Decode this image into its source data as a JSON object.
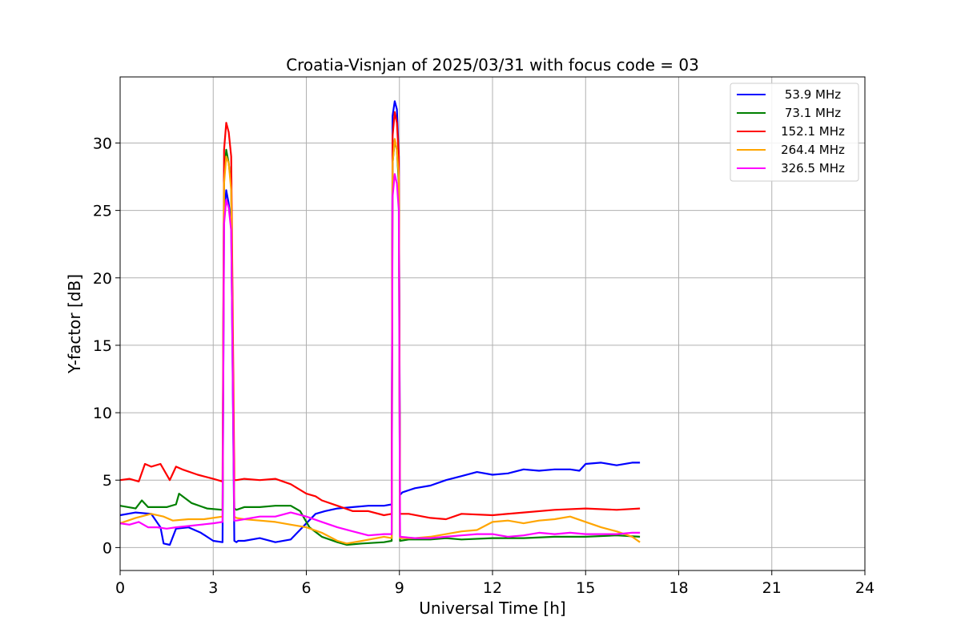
{
  "chart_data": {
    "type": "line",
    "title": "Croatia-Visnjan of 2025/03/31 with focus code = 03",
    "xlabel": "Universal Time [h]",
    "ylabel": "Y-factor [dB]",
    "xlim": [
      0,
      24
    ],
    "ylim": [
      -1.7,
      34.9
    ],
    "x_ticks": [
      0,
      3,
      6,
      9,
      12,
      15,
      18,
      21,
      24
    ],
    "y_ticks": [
      0,
      5,
      10,
      15,
      20,
      25,
      30
    ],
    "grid": true,
    "legend_position": "top-right",
    "series": [
      {
        "name": "53.9 MHz",
        "color": "#0000ff",
        "x": [
          0,
          0.5,
          1.0,
          1.3,
          1.4,
          1.6,
          1.8,
          2.2,
          2.6,
          3.0,
          3.3,
          3.35,
          3.42,
          3.5,
          3.58,
          3.68,
          3.75,
          3.8,
          4.0,
          4.5,
          5.0,
          5.5,
          6.0,
          6.3,
          6.6,
          7.0,
          7.5,
          8.0,
          8.5,
          8.75,
          8.78,
          8.85,
          8.92,
          8.98,
          9.02,
          9.1,
          9.5,
          10.0,
          10.5,
          11.0,
          11.5,
          12.0,
          12.5,
          13.0,
          13.5,
          14.0,
          14.5,
          14.8,
          15.0,
          15.5,
          16.0,
          16.5,
          16.75
        ],
        "values": [
          2.4,
          2.6,
          2.5,
          1.5,
          0.3,
          0.2,
          1.4,
          1.5,
          1.1,
          0.5,
          0.4,
          24.5,
          26.5,
          25.5,
          24.0,
          0.5,
          0.4,
          0.5,
          0.5,
          0.7,
          0.4,
          0.6,
          1.8,
          2.5,
          2.7,
          2.9,
          3.0,
          3.1,
          3.1,
          3.2,
          32.0,
          33.1,
          32.5,
          29.0,
          3.9,
          4.1,
          4.4,
          4.6,
          5.0,
          5.3,
          5.6,
          5.4,
          5.5,
          5.8,
          5.7,
          5.8,
          5.8,
          5.7,
          6.2,
          6.3,
          6.1,
          6.3,
          6.3
        ]
      },
      {
        "name": "73.1 MHz",
        "color": "#008000",
        "x": [
          0,
          0.5,
          0.7,
          0.9,
          1.5,
          1.8,
          1.9,
          2.3,
          2.8,
          3.3,
          3.35,
          3.42,
          3.5,
          3.58,
          3.68,
          3.75,
          4.0,
          4.5,
          5.0,
          5.5,
          5.8,
          6.1,
          6.5,
          7.0,
          7.3,
          7.8,
          8.5,
          8.75,
          8.78,
          8.85,
          8.92,
          8.98,
          9.02,
          9.3,
          10.0,
          10.5,
          11.0,
          12.0,
          13.0,
          14.0,
          15.0,
          16.0,
          16.75
        ],
        "values": [
          3.1,
          2.9,
          3.5,
          3.0,
          3.0,
          3.2,
          4.0,
          3.3,
          2.9,
          2.8,
          27.5,
          29.5,
          28.5,
          27.0,
          2.9,
          2.8,
          3.0,
          3.0,
          3.1,
          3.1,
          2.7,
          1.5,
          0.8,
          0.4,
          0.2,
          0.3,
          0.4,
          0.5,
          28.5,
          30.2,
          29.5,
          27.0,
          0.5,
          0.6,
          0.6,
          0.7,
          0.6,
          0.7,
          0.7,
          0.8,
          0.8,
          0.9,
          0.8
        ]
      },
      {
        "name": "152.1 MHz",
        "color": "#ff0000",
        "x": [
          0,
          0.3,
          0.6,
          0.8,
          1.0,
          1.3,
          1.6,
          1.8,
          2.0,
          2.5,
          3.0,
          3.3,
          3.35,
          3.42,
          3.5,
          3.58,
          3.68,
          3.75,
          4.0,
          4.5,
          5.0,
          5.5,
          6.0,
          6.3,
          6.5,
          7.0,
          7.5,
          8.0,
          8.5,
          8.75,
          8.78,
          8.85,
          8.92,
          8.98,
          9.02,
          9.3,
          10.0,
          10.5,
          11.0,
          12.0,
          13.0,
          14.0,
          15.0,
          16.0,
          16.75
        ],
        "values": [
          5.0,
          5.1,
          4.9,
          6.2,
          6.0,
          6.2,
          5.0,
          6.0,
          5.8,
          5.4,
          5.1,
          4.9,
          29.5,
          31.5,
          30.8,
          29.0,
          5.0,
          5.0,
          5.1,
          5.0,
          5.1,
          4.7,
          4.0,
          3.8,
          3.5,
          3.1,
          2.7,
          2.7,
          2.4,
          2.5,
          30.5,
          32.3,
          31.5,
          29.0,
          2.5,
          2.5,
          2.2,
          2.1,
          2.5,
          2.4,
          2.6,
          2.8,
          2.9,
          2.8,
          2.9
        ]
      },
      {
        "name": "264.4 MHz",
        "color": "#ffa500",
        "x": [
          0,
          0.5,
          1.0,
          1.4,
          1.7,
          2.2,
          2.7,
          3.3,
          3.35,
          3.42,
          3.5,
          3.58,
          3.68,
          3.75,
          4.0,
          4.5,
          5.0,
          5.5,
          6.0,
          6.5,
          7.0,
          7.3,
          7.8,
          8.5,
          8.75,
          8.78,
          8.85,
          8.92,
          8.98,
          9.02,
          9.5,
          10.0,
          10.5,
          11.0,
          11.5,
          12.0,
          12.5,
          13.0,
          13.5,
          14.0,
          14.5,
          15.0,
          15.5,
          16.0,
          16.5,
          16.75
        ],
        "values": [
          1.8,
          2.2,
          2.5,
          2.3,
          2.0,
          2.1,
          2.1,
          2.3,
          27.0,
          29.0,
          28.5,
          26.5,
          2.3,
          2.2,
          2.1,
          2.0,
          1.9,
          1.7,
          1.5,
          1.1,
          0.5,
          0.3,
          0.5,
          0.8,
          0.7,
          28.5,
          30.3,
          29.5,
          27.5,
          0.7,
          0.7,
          0.8,
          1.0,
          1.2,
          1.3,
          1.9,
          2.0,
          1.8,
          2.0,
          2.1,
          2.3,
          1.9,
          1.5,
          1.2,
          0.8,
          0.4
        ]
      },
      {
        "name": "326.5 MHz",
        "color": "#ff00ff",
        "x": [
          0,
          0.3,
          0.6,
          0.9,
          1.2,
          1.5,
          1.8,
          2.2,
          2.6,
          3.0,
          3.3,
          3.35,
          3.42,
          3.5,
          3.58,
          3.68,
          3.75,
          4.0,
          4.5,
          5.0,
          5.5,
          6.0,
          6.5,
          7.0,
          7.5,
          8.0,
          8.5,
          8.75,
          8.78,
          8.85,
          8.92,
          8.98,
          9.02,
          9.5,
          10.0,
          10.5,
          11.0,
          11.5,
          12.0,
          12.5,
          13.0,
          13.5,
          14.0,
          14.5,
          15.0,
          15.5,
          16.0,
          16.5,
          16.75
        ],
        "values": [
          1.8,
          1.7,
          1.9,
          1.5,
          1.5,
          1.4,
          1.5,
          1.6,
          1.7,
          1.8,
          1.9,
          24.0,
          25.8,
          25.2,
          23.5,
          2.0,
          2.0,
          2.1,
          2.3,
          2.3,
          2.6,
          2.3,
          1.9,
          1.5,
          1.2,
          0.9,
          1.0,
          1.0,
          26.0,
          27.7,
          27.0,
          25.0,
          0.8,
          0.7,
          0.7,
          0.8,
          0.9,
          1.0,
          1.0,
          0.8,
          0.9,
          1.1,
          1.0,
          1.1,
          1.0,
          1.0,
          1.0,
          1.1,
          1.1
        ]
      }
    ]
  }
}
